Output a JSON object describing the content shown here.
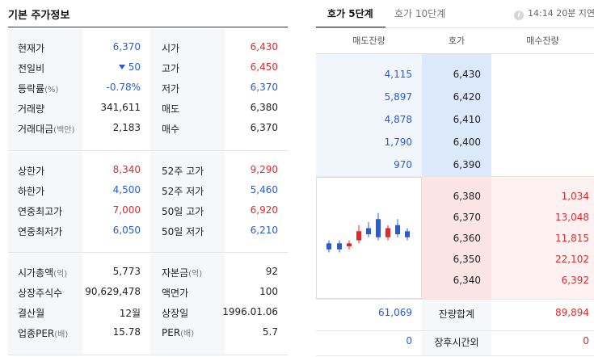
{
  "left": {
    "title": "기본 주가정보",
    "groups": [
      {
        "rows": [
          {
            "label1": "현재가",
            "suffix1": "",
            "value1": "6,370",
            "color1": "blue",
            "label2": "시가",
            "suffix2": "",
            "value2": "6,430",
            "color2": "red"
          },
          {
            "label1": "전일비",
            "suffix1": "",
            "value1": "50",
            "color1": "blue",
            "label2": "고가",
            "suffix2": "",
            "value2": "6,450",
            "color2": "red"
          },
          {
            "label1": "등락률",
            "suffix1": "(%)",
            "value1": "-0.78%",
            "color1": "blue",
            "label2": "저가",
            "suffix2": "",
            "value2": "6,370",
            "color2": "blue"
          },
          {
            "label1": "거래량",
            "suffix1": "",
            "value1": "341,611",
            "color1": "dark",
            "label2": "매도",
            "suffix2": "",
            "value2": "6,380",
            "color2": "dark"
          },
          {
            "label1": "거래대금",
            "suffix1": "(백만)",
            "value1": "2,183",
            "color1": "dark",
            "label2": "매수",
            "suffix2": "",
            "value2": "6,370",
            "color2": "dark"
          }
        ]
      },
      {
        "rows": [
          {
            "label1": "상한가",
            "suffix1": "",
            "value1": "8,340",
            "color1": "red",
            "label2": "52주 고가",
            "suffix2": "",
            "value2": "9,290",
            "color2": "red"
          },
          {
            "label1": "하한가",
            "suffix1": "",
            "value1": "4,500",
            "color1": "blue",
            "label2": "52주 저가",
            "suffix2": "",
            "value2": "5,460",
            "color2": "blue"
          },
          {
            "label1": "연중최고가",
            "suffix1": "",
            "value1": "7,000",
            "color1": "red",
            "label2": "50일 고가",
            "suffix2": "",
            "value2": "6,920",
            "color2": "red"
          },
          {
            "label1": "연중최저가",
            "suffix1": "",
            "value1": "6,050",
            "color1": "blue",
            "label2": "50일 저가",
            "suffix2": "",
            "value2": "6,210",
            "color2": "blue"
          }
        ]
      },
      {
        "rows": [
          {
            "label1": "시가총액",
            "suffix1": "(억)",
            "value1": "5,773",
            "color1": "dark",
            "label2": "자본금",
            "suffix2": "(억)",
            "value2": "92",
            "color2": "dark"
          },
          {
            "label1": "상장주식수",
            "suffix1": "",
            "value1": "90,629,478",
            "color1": "dark",
            "label2": "액면가",
            "suffix2": "",
            "value2": "100",
            "color2": "dark"
          },
          {
            "label1": "결산월",
            "suffix1": "",
            "value1": "12월",
            "color1": "dark",
            "label2": "상장일",
            "suffix2": "",
            "value2": "1996.01.06",
            "color2": "dark"
          },
          {
            "label1": "업종PER",
            "suffix1": "(배)",
            "value1": "15.78",
            "color1": "dark",
            "label2": "PER",
            "suffix2": "(배)",
            "value2": "5.7",
            "color2": "dark"
          }
        ]
      }
    ]
  },
  "orderbook": {
    "tab_active": "호가 5단계",
    "tab_inactive": "호가 10단계",
    "info_icon": "i",
    "delay_text": "14:14 20분 지연",
    "headers": {
      "sell": "매도잔량",
      "price": "호가",
      "buy": "매수잔량"
    },
    "asks": [
      {
        "qty": "4,115",
        "price": "6,430"
      },
      {
        "qty": "5,897",
        "price": "6,420"
      },
      {
        "qty": "4,878",
        "price": "6,410"
      },
      {
        "qty": "1,790",
        "price": "6,400"
      },
      {
        "qty": "970",
        "price": "6,390"
      }
    ],
    "bids": [
      {
        "price": "6,380",
        "qty": "1,034"
      },
      {
        "price": "6,370",
        "qty": "13,048"
      },
      {
        "price": "6,360",
        "qty": "11,815"
      },
      {
        "price": "6,350",
        "qty": "22,102"
      },
      {
        "price": "6,340",
        "qty": "6,392"
      }
    ],
    "total": {
      "label": "잔량합계",
      "sell": "61,069",
      "buy": "89,894"
    },
    "after_hours": {
      "label": "장후시간외",
      "sell": "0",
      "buy": "0"
    },
    "colors": {
      "up": "#e02a2a",
      "down": "#2a5bd7"
    },
    "mini_chart": {
      "candles": [
        {
          "dir": "down",
          "open": 6395,
          "close": 6385,
          "high": 6400,
          "low": 6380
        },
        {
          "dir": "down",
          "open": 6395,
          "close": 6385,
          "high": 6400,
          "low": 6380
        },
        {
          "dir": "up",
          "open": 6390,
          "close": 6395,
          "high": 6400,
          "low": 6385
        },
        {
          "dir": "up",
          "open": 6400,
          "close": 6415,
          "high": 6425,
          "low": 6395
        },
        {
          "dir": "down",
          "open": 6420,
          "close": 6410,
          "high": 6430,
          "low": 6405
        },
        {
          "dir": "down",
          "open": 6435,
          "close": 6405,
          "high": 6445,
          "low": 6400
        },
        {
          "dir": "up",
          "open": 6405,
          "close": 6420,
          "high": 6425,
          "low": 6400
        },
        {
          "dir": "down",
          "open": 6425,
          "close": 6410,
          "high": 6435,
          "low": 6405
        },
        {
          "dir": "down",
          "open": 6415,
          "close": 6405,
          "high": 6420,
          "low": 6400
        }
      ]
    }
  }
}
